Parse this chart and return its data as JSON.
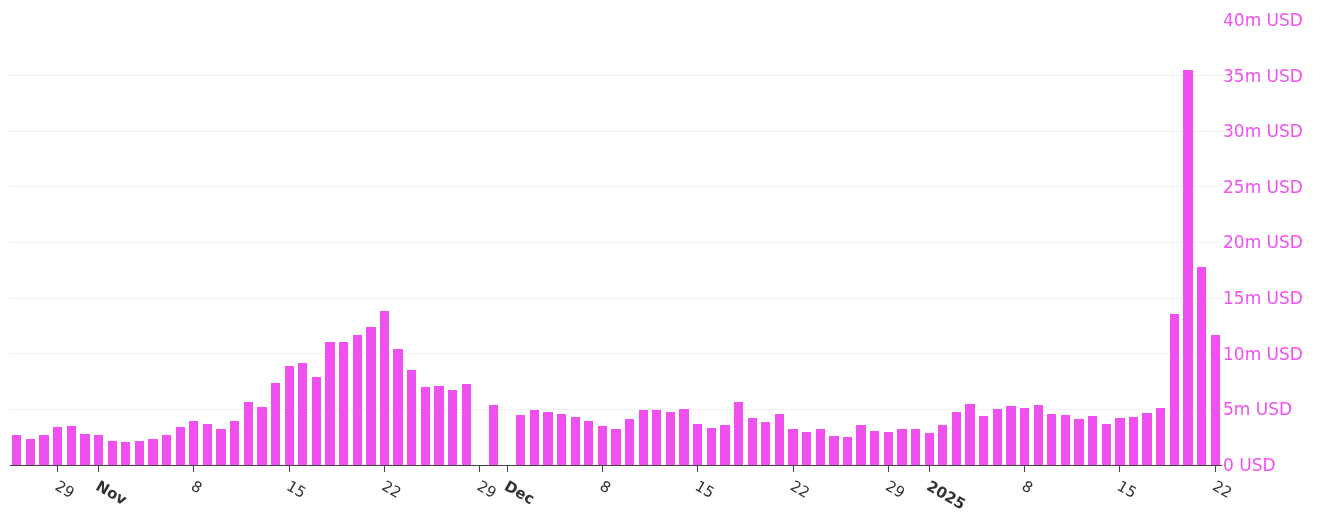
{
  "chart_data": {
    "type": "bar",
    "color": "#f050f0",
    "grid": "y",
    "xlim": [
      "2024-10-25T12:00",
      "2025-01-22T12:00"
    ],
    "xticks": [
      {
        "value": "2024-10-29",
        "label": "29"
      },
      {
        "value": "2024-11-01",
        "label": "Nov"
      },
      {
        "value": "2024-11-08",
        "label": "8"
      },
      {
        "value": "2024-11-15",
        "label": "15"
      },
      {
        "value": "2024-11-22",
        "label": "22"
      },
      {
        "value": "2024-11-29",
        "label": "29"
      },
      {
        "value": "2024-12-01",
        "label": "Dec"
      },
      {
        "value": "2024-12-08",
        "label": "8"
      },
      {
        "value": "2024-12-15",
        "label": "15"
      },
      {
        "value": "2024-12-22",
        "label": "22"
      },
      {
        "value": "2024-12-29",
        "label": "29"
      },
      {
        "value": "2025-01-01",
        "label": "2025"
      },
      {
        "value": "2025-01-08",
        "label": "8"
      },
      {
        "value": "2025-01-15",
        "label": "15"
      },
      {
        "value": "2025-01-22",
        "label": "22"
      }
    ],
    "ylim": [
      0,
      40
    ],
    "yticks": [
      {
        "value": 0,
        "label": "0 USD"
      },
      {
        "value": 5,
        "label": "5m USD"
      },
      {
        "value": 10,
        "label": "10m USD"
      },
      {
        "value": 15,
        "label": "15m USD"
      },
      {
        "value": 20,
        "label": "20m USD"
      },
      {
        "value": 25,
        "label": "25m USD"
      },
      {
        "value": 30,
        "label": "30m USD"
      },
      {
        "value": 35,
        "label": "35m USD"
      },
      {
        "value": 40,
        "label": "40m USD"
      }
    ],
    "x": [
      "2024-10-26",
      "2024-10-27",
      "2024-10-28",
      "2024-10-29",
      "2024-10-30",
      "2024-10-31",
      "2024-11-01",
      "2024-11-02",
      "2024-11-03",
      "2024-11-04",
      "2024-11-05",
      "2024-11-06",
      "2024-11-07",
      "2024-11-08",
      "2024-11-09",
      "2024-11-10",
      "2024-11-11",
      "2024-11-12",
      "2024-11-13",
      "2024-11-14",
      "2024-11-15",
      "2024-11-16",
      "2024-11-17",
      "2024-11-18",
      "2024-11-19",
      "2024-11-20",
      "2024-11-21",
      "2024-11-22",
      "2024-11-23",
      "2024-11-24",
      "2024-11-25",
      "2024-11-26",
      "2024-11-27",
      "2024-11-28",
      "2024-11-29",
      "2024-11-30",
      "2024-12-01",
      "2024-12-02",
      "2024-12-03",
      "2024-12-04",
      "2024-12-05",
      "2024-12-06",
      "2024-12-07",
      "2024-12-08",
      "2024-12-09",
      "2024-12-10",
      "2024-12-11",
      "2024-12-12",
      "2024-12-13",
      "2024-12-14",
      "2024-12-15",
      "2024-12-16",
      "2024-12-17",
      "2024-12-18",
      "2024-12-19",
      "2024-12-20",
      "2024-12-21",
      "2024-12-22",
      "2024-12-23",
      "2024-12-24",
      "2024-12-25",
      "2024-12-26",
      "2024-12-27",
      "2024-12-28",
      "2024-12-29",
      "2024-12-30",
      "2024-12-31",
      "2025-01-01",
      "2025-01-02",
      "2025-01-03",
      "2025-01-04",
      "2025-01-05",
      "2025-01-06",
      "2025-01-07",
      "2025-01-08",
      "2025-01-09",
      "2025-01-10",
      "2025-01-11",
      "2025-01-12",
      "2025-01-13",
      "2025-01-14",
      "2025-01-15",
      "2025-01-16",
      "2025-01-17",
      "2025-01-18",
      "2025-01-19",
      "2025-01-20",
      "2025-01-21",
      "2025-01-22"
    ],
    "values": [
      2.7,
      2.3,
      2.7,
      3.4,
      3.5,
      2.8,
      2.7,
      2.2,
      2.1,
      2.2,
      2.3,
      2.7,
      3.4,
      4.0,
      3.7,
      3.2,
      4.0,
      5.7,
      5.2,
      7.4,
      8.9,
      9.2,
      7.9,
      11.1,
      11.1,
      11.7,
      12.4,
      13.8,
      10.4,
      8.5,
      7.0,
      7.1,
      6.7,
      7.3,
      null,
      5.4,
      null,
      4.5,
      4.9,
      4.8,
      4.6,
      4.3,
      4.0,
      3.5,
      3.2,
      4.1,
      4.9,
      4.9,
      4.8,
      5.0,
      3.7,
      3.3,
      3.6,
      5.7,
      4.2,
      3.9,
      4.6,
      3.2,
      3.0,
      3.2,
      2.6,
      2.5,
      3.6,
      3.1,
      3.0,
      3.2,
      3.2,
      2.9,
      3.6,
      4.8,
      5.5,
      4.4,
      5.0,
      5.3,
      5.1,
      5.4,
      4.6,
      4.5,
      4.1,
      4.4,
      3.7,
      4.2,
      4.3,
      4.7,
      5.1,
      13.6,
      35.5,
      17.8,
      11.7
    ]
  }
}
